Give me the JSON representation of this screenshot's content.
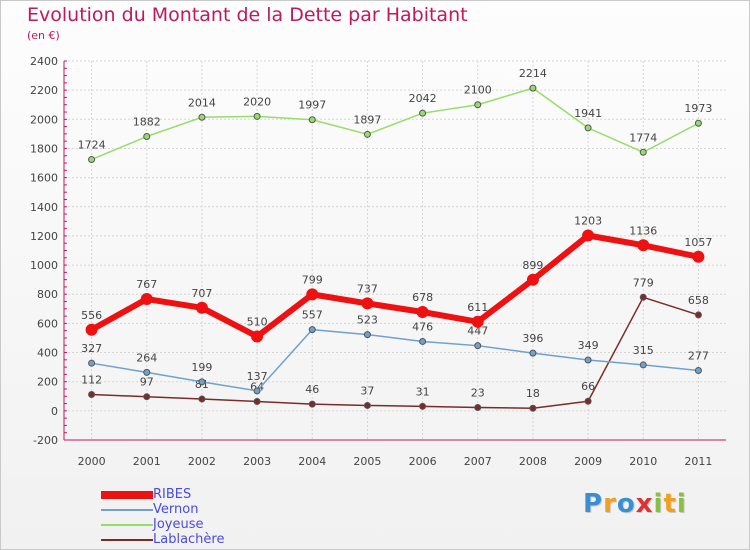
{
  "chart_data": {
    "type": "line",
    "title": "Evolution du Montant de la Dette par Habitant",
    "subtitle": "(en €)",
    "x": [
      "2000",
      "2001",
      "2002",
      "2003",
      "2004",
      "2005",
      "2006",
      "2007",
      "2008",
      "2009",
      "2010",
      "2011"
    ],
    "ylim": [
      -200,
      2400
    ],
    "yticks": [
      -200,
      0,
      200,
      400,
      600,
      800,
      1000,
      1200,
      1400,
      1600,
      1800,
      2000,
      2200,
      2400
    ],
    "grid": true,
    "legend_position": "bottom-left",
    "series": [
      {
        "name": "RIBES",
        "color": "#ee1111",
        "values": [
          556,
          767,
          707,
          510,
          799,
          737,
          678,
          611,
          899,
          1203,
          1136,
          1057
        ]
      },
      {
        "name": "Vernon",
        "color": "#6fa1cc",
        "values": [
          327,
          264,
          199,
          137,
          557,
          523,
          476,
          447,
          396,
          349,
          315,
          277
        ]
      },
      {
        "name": "Joyeuse",
        "color": "#97dd6a",
        "values": [
          1724,
          1882,
          2014,
          2020,
          1997,
          1897,
          2042,
          2100,
          2214,
          1941,
          1774,
          1973
        ]
      },
      {
        "name": "Lablachère",
        "color": "#7d2a2a",
        "values": [
          112,
          97,
          81,
          64,
          46,
          37,
          31,
          23,
          18,
          66,
          779,
          658
        ]
      }
    ]
  },
  "brand": {
    "letters": [
      {
        "char": "P",
        "color": "#3a8fd0"
      },
      {
        "char": "r",
        "color": "#f0a020"
      },
      {
        "char": "o",
        "color": "#3a8fd0"
      },
      {
        "char": "x",
        "color": "#e03030"
      },
      {
        "char": "i",
        "color": "#88c040"
      },
      {
        "char": "t",
        "color": "#f0a020"
      },
      {
        "char": "i",
        "color": "#88c040"
      }
    ]
  }
}
